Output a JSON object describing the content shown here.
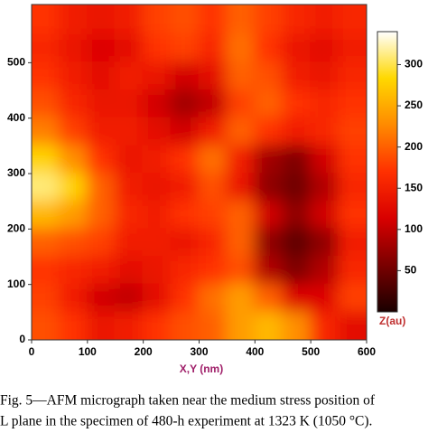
{
  "chart_data": {
    "type": "heatmap",
    "x_label": "X,Y (nm)",
    "z_label": "Z(au)",
    "x": [
      25,
      75,
      125,
      175,
      225,
      275,
      325,
      375,
      425,
      475,
      525,
      575
    ],
    "y": [
      575,
      525,
      475,
      425,
      375,
      325,
      275,
      225,
      175,
      125,
      75,
      25
    ],
    "values": [
      [
        170,
        150,
        140,
        150,
        180,
        190,
        170,
        200,
        180,
        160,
        150,
        160
      ],
      [
        160,
        140,
        120,
        130,
        170,
        180,
        160,
        210,
        170,
        140,
        130,
        150
      ],
      [
        170,
        150,
        130,
        150,
        140,
        110,
        130,
        200,
        190,
        150,
        140,
        160
      ],
      [
        190,
        160,
        140,
        140,
        110,
        80,
        100,
        180,
        200,
        170,
        160,
        170
      ],
      [
        220,
        180,
        150,
        150,
        130,
        110,
        150,
        200,
        170,
        150,
        160,
        180
      ],
      [
        280,
        230,
        170,
        140,
        150,
        170,
        210,
        150,
        80,
        60,
        110,
        170
      ],
      [
        310,
        280,
        200,
        150,
        140,
        150,
        190,
        140,
        70,
        50,
        90,
        160
      ],
      [
        260,
        240,
        200,
        160,
        150,
        170,
        180,
        200,
        110,
        70,
        110,
        170
      ],
      [
        200,
        190,
        180,
        150,
        150,
        140,
        160,
        200,
        70,
        40,
        70,
        150
      ],
      [
        170,
        160,
        150,
        130,
        140,
        160,
        170,
        190,
        90,
        60,
        90,
        160
      ],
      [
        180,
        150,
        110,
        100,
        130,
        170,
        210,
        240,
        200,
        120,
        120,
        180
      ],
      [
        190,
        170,
        140,
        150,
        170,
        190,
        200,
        240,
        260,
        230,
        160,
        130
      ]
    ],
    "xlim": [
      0,
      600
    ],
    "xticks": [
      0,
      100,
      200,
      300,
      400,
      500,
      600
    ],
    "ylim": [
      0,
      605
    ],
    "yticks": [
      0,
      100,
      200,
      300,
      400,
      500
    ],
    "zlim": [
      0,
      340
    ],
    "zticks": [
      50,
      100,
      150,
      200,
      250,
      300
    ],
    "colormap": [
      "#1a0000",
      "#7a0000",
      "#d80000",
      "#ff3000",
      "#ff8a00",
      "#ffd800",
      "#ffffff"
    ]
  },
  "caption": [
    "Fig. 5—AFM micrograph taken near the medium stress position of",
    "L plane in the specimen of 480-h experiment at 1323 K (1050 °C)."
  ]
}
